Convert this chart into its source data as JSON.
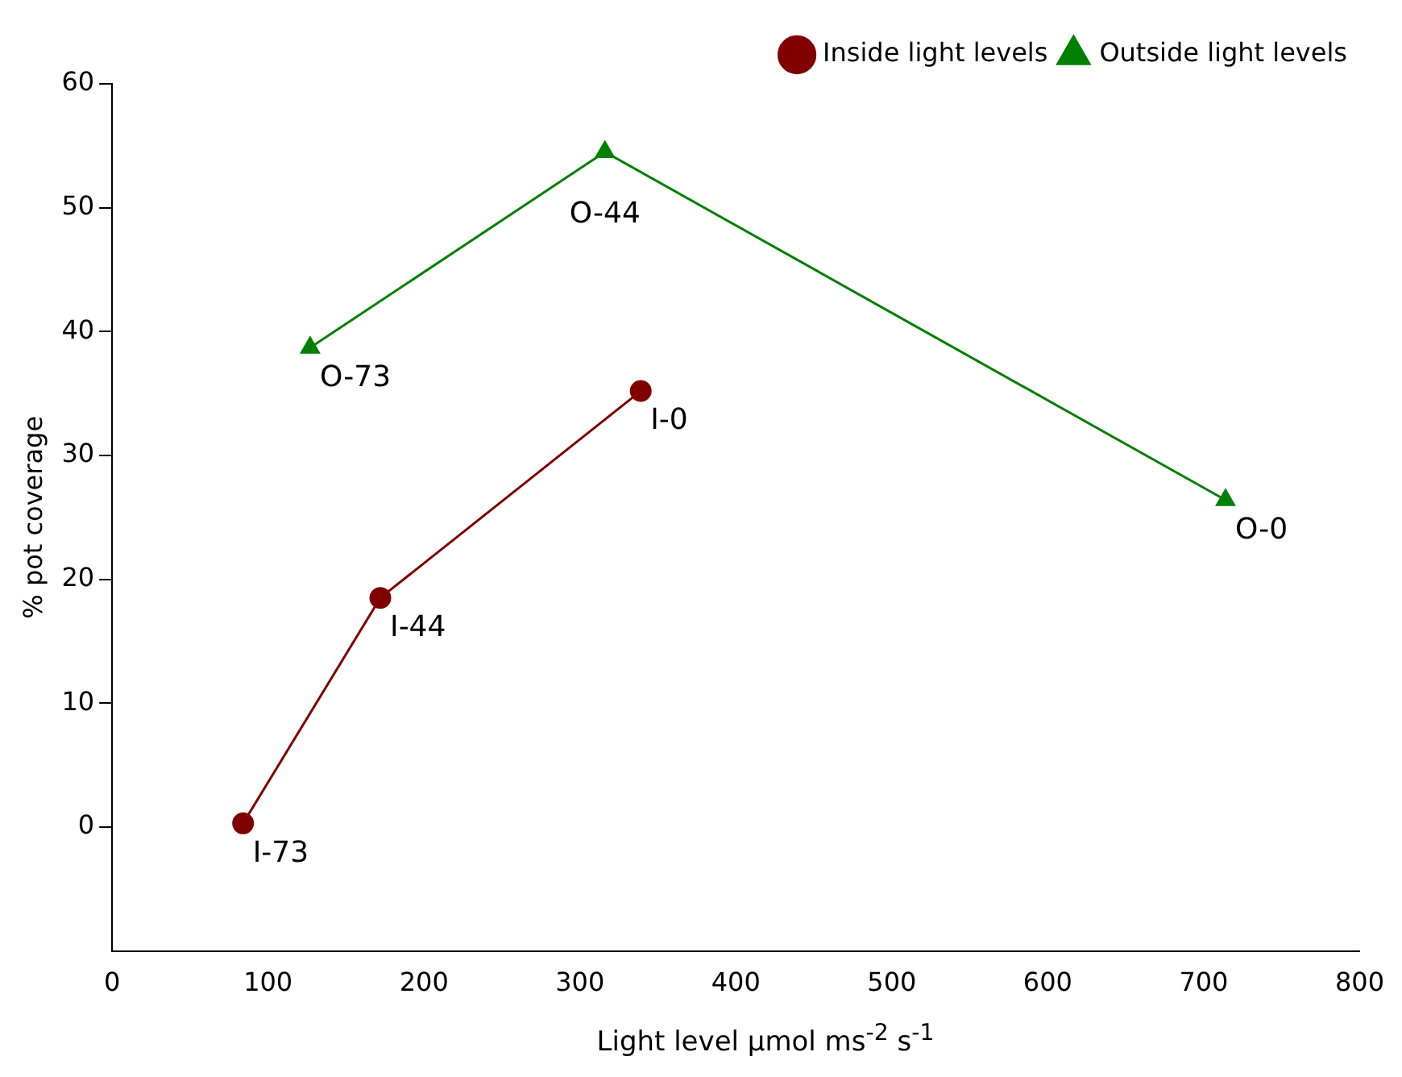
{
  "chart_data": {
    "type": "line",
    "xlabel": "Light level μmol ms$^{-2}$ s$^{-1}$",
    "ylabel": "% pot coverage",
    "xlim": [
      0,
      800
    ],
    "xticks": [
      0,
      100,
      200,
      300,
      400,
      500,
      600,
      700,
      800
    ],
    "ylim": [
      -10,
      60
    ],
    "yticks": [
      0,
      10,
      20,
      30,
      40,
      50,
      60
    ],
    "grid": false,
    "legend": "top right",
    "line_style": "solid",
    "series": [
      {
        "name": "Inside light levels",
        "color": "#800000",
        "marker": "circle",
        "x": [
          84,
          172,
          339
        ],
        "values": [
          0.3,
          18.5,
          35.2
        ]
      },
      {
        "name": "Outside light levels",
        "color": "#008000",
        "marker": "triangle",
        "x": [
          127,
          316,
          714
        ],
        "values": [
          38.7,
          54.5,
          26.4
        ]
      }
    ],
    "annotations": [
      {
        "text": "I-73",
        "x": 84,
        "y": 0.3
      },
      {
        "text": "I-44",
        "x": 172,
        "y": 18.5
      },
      {
        "text": "I-0",
        "x": 339,
        "y": 35.2
      },
      {
        "text": "O-73",
        "x": 127,
        "y": 38.7
      },
      {
        "text": "O-44",
        "x": 316,
        "y": 54.5
      },
      {
        "text": "O-0",
        "x": 714,
        "y": 26.4
      }
    ]
  }
}
